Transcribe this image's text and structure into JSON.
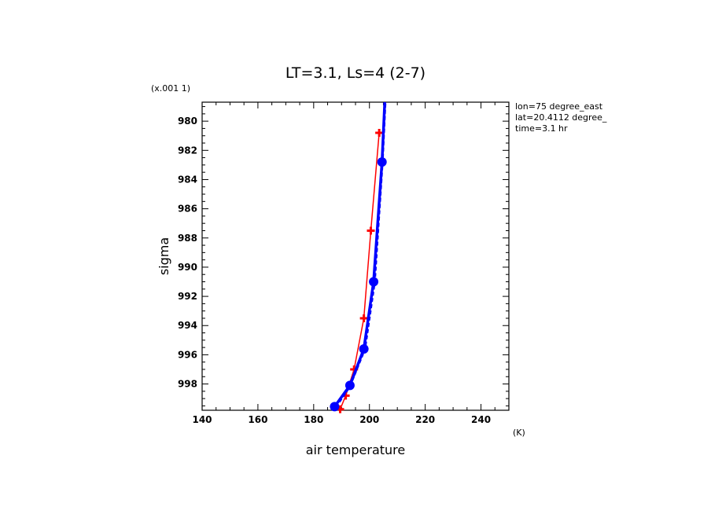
{
  "chart_data": {
    "type": "line",
    "title": "LT=3.1, Ls=4 (2-7)",
    "xlabel": "air temperature",
    "ylabel": "sigma",
    "x_unit": "(K)",
    "y_scale_note": "(x.001 1)",
    "xlim": [
      140,
      250
    ],
    "ylim": [
      999.8,
      978.7
    ],
    "x_ticks": [
      "140",
      "160",
      "180",
      "200",
      "220",
      "240"
    ],
    "y_ticks": [
      "980",
      "982",
      "984",
      "986",
      "988",
      "990",
      "992",
      "994",
      "996",
      "998"
    ],
    "annotations": [
      "lon=75 degree_east",
      "lat=20.4112 degree_",
      "time=3.1 hr"
    ],
    "series": [
      {
        "color": "#ff0000",
        "style": "thin-line-plus-markers",
        "points": [
          {
            "x": 189.5,
            "y": 999.73
          },
          {
            "x": 191.5,
            "y": 998.8
          },
          {
            "x": 194.5,
            "y": 997.0
          },
          {
            "x": 198.0,
            "y": 993.5
          },
          {
            "x": 200.5,
            "y": 987.5
          },
          {
            "x": 203.5,
            "y": 980.8
          }
        ]
      },
      {
        "color": "#0000ff",
        "style": "thick-line-circle-markers",
        "points": [
          {
            "x": 187.5,
            "y": 999.55
          },
          {
            "x": 193.0,
            "y": 998.1
          },
          {
            "x": 198.0,
            "y": 995.6
          },
          {
            "x": 201.5,
            "y": 991.0
          },
          {
            "x": 204.5,
            "y": 982.8
          },
          {
            "x": 205.5,
            "y": 978.7
          }
        ]
      },
      {
        "color": "#0000ff",
        "style": "dashed-line",
        "points": [
          {
            "x": 188.0,
            "y": 999.6
          },
          {
            "x": 193.0,
            "y": 998.2
          },
          {
            "x": 198.5,
            "y": 995.6
          },
          {
            "x": 202.0,
            "y": 991.0
          },
          {
            "x": 204.8,
            "y": 982.8
          },
          {
            "x": 205.8,
            "y": 978.7
          }
        ]
      }
    ]
  }
}
